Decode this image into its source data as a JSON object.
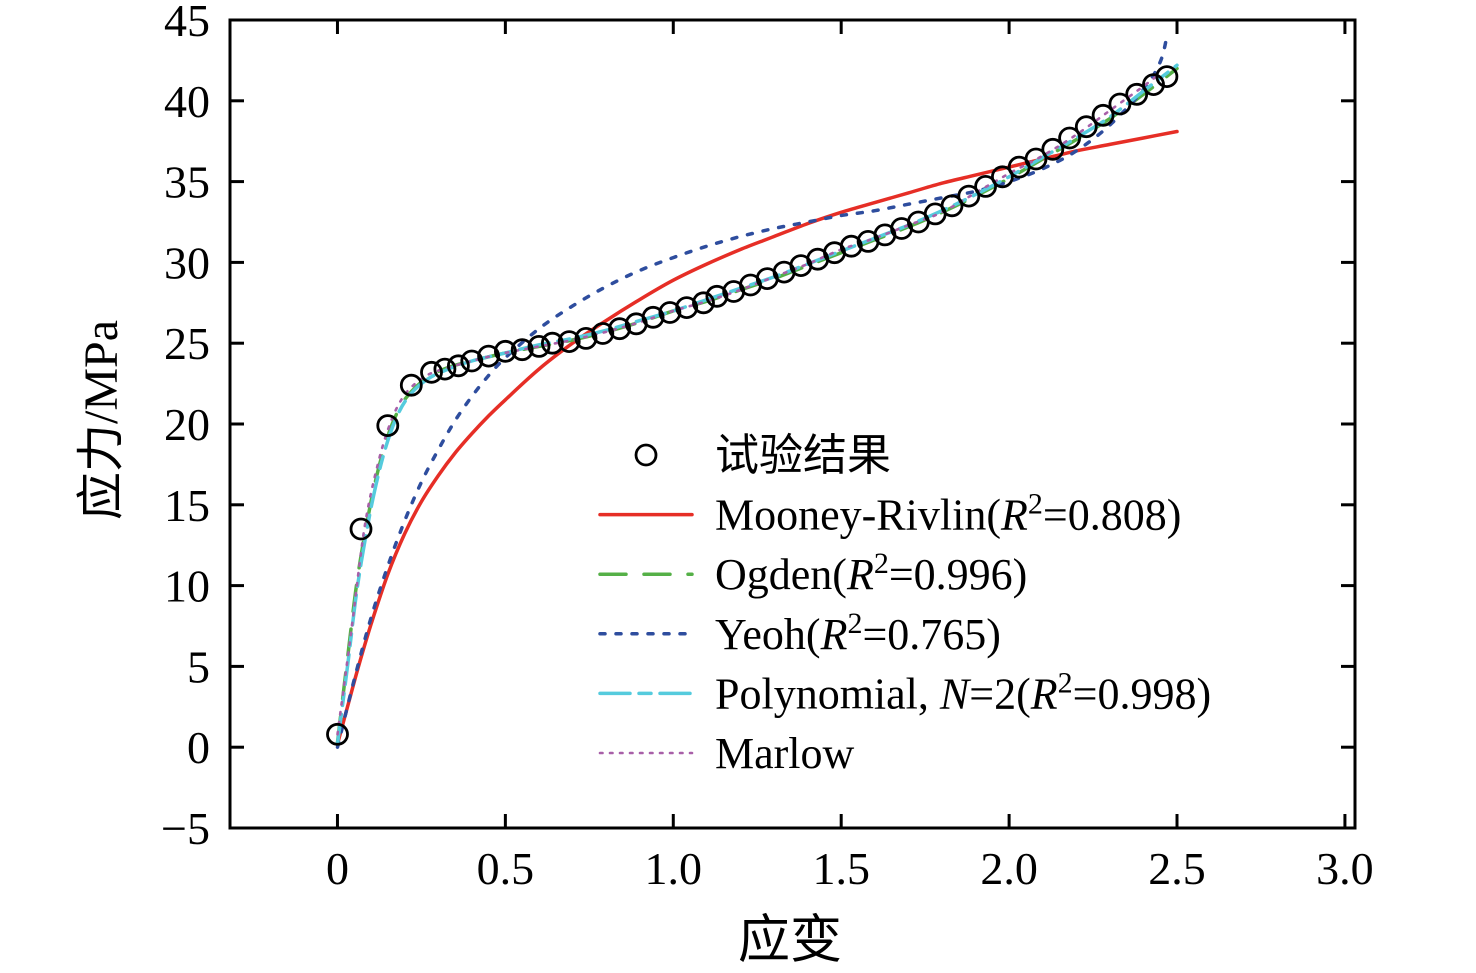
{
  "chart_data": {
    "type": "line+scatter",
    "title": "",
    "xlabel": "应变",
    "ylabel": "应力/MPa",
    "xlim": [
      -0.32,
      3.03
    ],
    "ylim": [
      -5,
      45
    ],
    "xticks": [
      0,
      0.5,
      1.0,
      1.5,
      2.0,
      2.5,
      3.0
    ],
    "xtick_labels": [
      "0",
      "0.5",
      "1.0",
      "1.5",
      "2.0",
      "2.5",
      "3.0"
    ],
    "yticks": [
      -5,
      0,
      5,
      10,
      15,
      20,
      25,
      30,
      35,
      40,
      45
    ],
    "ytick_labels": [
      "−5",
      "0",
      "5",
      "10",
      "15",
      "20",
      "25",
      "30",
      "35",
      "40",
      "45"
    ],
    "grid": false,
    "legend_position": "inside-center-right",
    "series": [
      {
        "name": "试验结果",
        "kind": "scatter",
        "marker": "open-circle",
        "color": "#000000",
        "marker_size": 10,
        "points": [
          [
            0.0,
            0.8
          ],
          [
            0.07,
            13.5
          ],
          [
            0.15,
            19.9
          ],
          [
            0.22,
            22.4
          ],
          [
            0.28,
            23.2
          ],
          [
            0.32,
            23.4
          ],
          [
            0.36,
            23.6
          ],
          [
            0.4,
            23.9
          ],
          [
            0.45,
            24.2
          ],
          [
            0.5,
            24.5
          ],
          [
            0.55,
            24.6
          ],
          [
            0.6,
            24.8
          ],
          [
            0.64,
            25.0
          ],
          [
            0.69,
            25.1
          ],
          [
            0.74,
            25.3
          ],
          [
            0.79,
            25.6
          ],
          [
            0.84,
            25.9
          ],
          [
            0.89,
            26.2
          ],
          [
            0.94,
            26.6
          ],
          [
            0.99,
            26.9
          ],
          [
            1.04,
            27.2
          ],
          [
            1.09,
            27.5
          ],
          [
            1.13,
            27.9
          ],
          [
            1.18,
            28.2
          ],
          [
            1.23,
            28.6
          ],
          [
            1.28,
            29.0
          ],
          [
            1.33,
            29.4
          ],
          [
            1.38,
            29.8
          ],
          [
            1.43,
            30.2
          ],
          [
            1.48,
            30.6
          ],
          [
            1.53,
            31.0
          ],
          [
            1.58,
            31.3
          ],
          [
            1.63,
            31.7
          ],
          [
            1.68,
            32.1
          ],
          [
            1.73,
            32.5
          ],
          [
            1.78,
            33.0
          ],
          [
            1.83,
            33.5
          ],
          [
            1.88,
            34.1
          ],
          [
            1.93,
            34.7
          ],
          [
            1.98,
            35.3
          ],
          [
            2.03,
            35.9
          ],
          [
            2.08,
            36.4
          ],
          [
            2.13,
            37.0
          ],
          [
            2.18,
            37.7
          ],
          [
            2.23,
            38.4
          ],
          [
            2.28,
            39.1
          ],
          [
            2.33,
            39.8
          ],
          [
            2.38,
            40.4
          ],
          [
            2.43,
            41.0
          ],
          [
            2.47,
            41.5
          ]
        ]
      },
      {
        "name": "Mooney-Rivlin(R²=0.808)",
        "kind": "line",
        "line_style": "solid",
        "color": "#e62e26",
        "width": 3.5,
        "points": [
          [
            0.0,
            0.2
          ],
          [
            0.03,
            2.5
          ],
          [
            0.06,
            4.8
          ],
          [
            0.1,
            7.6
          ],
          [
            0.15,
            10.7
          ],
          [
            0.2,
            13.2
          ],
          [
            0.25,
            15.2
          ],
          [
            0.3,
            16.8
          ],
          [
            0.35,
            18.2
          ],
          [
            0.4,
            19.4
          ],
          [
            0.45,
            20.5
          ],
          [
            0.5,
            21.5
          ],
          [
            0.6,
            23.4
          ],
          [
            0.7,
            25.0
          ],
          [
            0.8,
            26.4
          ],
          [
            0.9,
            27.7
          ],
          [
            1.0,
            28.9
          ],
          [
            1.1,
            29.9
          ],
          [
            1.2,
            30.8
          ],
          [
            1.3,
            31.6
          ],
          [
            1.4,
            32.4
          ],
          [
            1.5,
            33.1
          ],
          [
            1.6,
            33.7
          ],
          [
            1.7,
            34.3
          ],
          [
            1.8,
            34.9
          ],
          [
            1.9,
            35.4
          ],
          [
            2.0,
            35.9
          ],
          [
            2.1,
            36.4
          ],
          [
            2.2,
            36.9
          ],
          [
            2.3,
            37.3
          ],
          [
            2.4,
            37.7
          ],
          [
            2.5,
            38.1
          ]
        ]
      },
      {
        "name": "Ogden(R²=0.996)",
        "kind": "line",
        "line_style": "dashed",
        "color": "#55b047",
        "width": 3.5,
        "points": [
          [
            0.0,
            0.3
          ],
          [
            0.03,
            5.5
          ],
          [
            0.06,
            10.5
          ],
          [
            0.1,
            15.2
          ],
          [
            0.14,
            18.6
          ],
          [
            0.18,
            20.8
          ],
          [
            0.22,
            22.0
          ],
          [
            0.27,
            22.9
          ],
          [
            0.33,
            23.5
          ],
          [
            0.4,
            23.9
          ],
          [
            0.5,
            24.4
          ],
          [
            0.6,
            24.8
          ],
          [
            0.7,
            25.2
          ],
          [
            0.8,
            25.7
          ],
          [
            0.9,
            26.3
          ],
          [
            1.0,
            27.0
          ],
          [
            1.1,
            27.6
          ],
          [
            1.2,
            28.3
          ],
          [
            1.3,
            29.0
          ],
          [
            1.4,
            29.8
          ],
          [
            1.5,
            30.6
          ],
          [
            1.6,
            31.4
          ],
          [
            1.7,
            32.2
          ],
          [
            1.8,
            33.1
          ],
          [
            1.9,
            34.1
          ],
          [
            2.0,
            35.2
          ],
          [
            2.1,
            36.4
          ],
          [
            2.2,
            37.6
          ],
          [
            2.3,
            38.9
          ],
          [
            2.4,
            40.4
          ],
          [
            2.5,
            42.0
          ]
        ]
      },
      {
        "name": "Yeoh(R²=0.765)",
        "kind": "line",
        "line_style": "dotted",
        "color": "#2e4d9e",
        "width": 3.5,
        "points": [
          [
            0.0,
            0.0
          ],
          [
            0.05,
            4.2
          ],
          [
            0.1,
            8.0
          ],
          [
            0.15,
            11.2
          ],
          [
            0.2,
            14.0
          ],
          [
            0.25,
            16.4
          ],
          [
            0.3,
            18.4
          ],
          [
            0.35,
            20.2
          ],
          [
            0.4,
            21.7
          ],
          [
            0.45,
            23.0
          ],
          [
            0.5,
            24.1
          ],
          [
            0.6,
            25.9
          ],
          [
            0.7,
            27.3
          ],
          [
            0.8,
            28.5
          ],
          [
            0.9,
            29.5
          ],
          [
            1.0,
            30.3
          ],
          [
            1.1,
            31.0
          ],
          [
            1.2,
            31.6
          ],
          [
            1.3,
            32.1
          ],
          [
            1.4,
            32.5
          ],
          [
            1.5,
            32.9
          ],
          [
            1.6,
            33.2
          ],
          [
            1.7,
            33.6
          ],
          [
            1.8,
            34.0
          ],
          [
            1.9,
            34.4
          ],
          [
            2.0,
            35.0
          ],
          [
            2.1,
            35.8
          ],
          [
            2.2,
            36.9
          ],
          [
            2.3,
            38.5
          ],
          [
            2.4,
            40.7
          ],
          [
            2.45,
            42.4
          ],
          [
            2.47,
            44.0
          ]
        ]
      },
      {
        "name": "Polynomial, N=2(R²=0.998)",
        "kind": "line",
        "line_style": "dash-dot",
        "color": "#55cbdd",
        "width": 3.5,
        "points": [
          [
            0.0,
            0.2
          ],
          [
            0.03,
            5.0
          ],
          [
            0.06,
            10.0
          ],
          [
            0.1,
            14.8
          ],
          [
            0.14,
            18.3
          ],
          [
            0.18,
            20.6
          ],
          [
            0.22,
            21.9
          ],
          [
            0.27,
            22.8
          ],
          [
            0.33,
            23.4
          ],
          [
            0.4,
            23.9
          ],
          [
            0.5,
            24.4
          ],
          [
            0.6,
            24.9
          ],
          [
            0.7,
            25.3
          ],
          [
            0.8,
            25.8
          ],
          [
            0.9,
            26.4
          ],
          [
            1.0,
            27.0
          ],
          [
            1.1,
            27.7
          ],
          [
            1.2,
            28.4
          ],
          [
            1.3,
            29.1
          ],
          [
            1.4,
            29.9
          ],
          [
            1.5,
            30.7
          ],
          [
            1.6,
            31.5
          ],
          [
            1.7,
            32.3
          ],
          [
            1.8,
            33.2
          ],
          [
            1.9,
            34.2
          ],
          [
            2.0,
            35.3
          ],
          [
            2.1,
            36.5
          ],
          [
            2.2,
            37.7
          ],
          [
            2.3,
            39.0
          ],
          [
            2.4,
            40.6
          ],
          [
            2.5,
            42.2
          ]
        ]
      },
      {
        "name": "Marlow",
        "kind": "line",
        "line_style": "fine-dotted",
        "color": "#a85fa8",
        "width": 2.6,
        "points": [
          [
            0.0,
            0.8
          ],
          [
            0.04,
            7.0
          ],
          [
            0.08,
            13.5
          ],
          [
            0.12,
            17.5
          ],
          [
            0.16,
            20.2
          ],
          [
            0.2,
            21.8
          ],
          [
            0.25,
            22.8
          ],
          [
            0.3,
            23.3
          ],
          [
            0.4,
            23.9
          ],
          [
            0.5,
            24.4
          ],
          [
            0.6,
            24.8
          ],
          [
            0.7,
            25.2
          ],
          [
            0.8,
            25.7
          ],
          [
            0.9,
            26.3
          ],
          [
            1.0,
            27.0
          ],
          [
            1.1,
            27.6
          ],
          [
            1.2,
            28.3
          ],
          [
            1.3,
            29.1
          ],
          [
            1.4,
            29.9
          ],
          [
            1.5,
            30.8
          ],
          [
            1.6,
            31.5
          ],
          [
            1.7,
            32.3
          ],
          [
            1.8,
            33.1
          ],
          [
            1.9,
            34.3
          ],
          [
            2.0,
            35.5
          ],
          [
            2.1,
            36.6
          ],
          [
            2.2,
            37.9
          ],
          [
            2.3,
            39.4
          ],
          [
            2.4,
            40.9
          ],
          [
            2.45,
            41.7
          ]
        ]
      }
    ]
  }
}
